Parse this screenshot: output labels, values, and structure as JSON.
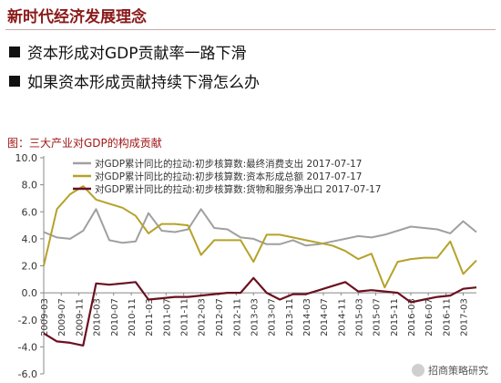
{
  "header": {
    "title": "新时代经济发展理念",
    "accent_color": "#8b1a1a"
  },
  "bullets": [
    {
      "text": "资本形成对GDP贡献率一路下滑"
    },
    {
      "text": "如果资本形成贡献持续下滑怎么办"
    }
  ],
  "chart_caption": "图：三大产业对GDP的构成贡献",
  "watermark": "招商策略研究",
  "chart_data": {
    "type": "line",
    "title": "",
    "xlabel": "",
    "ylabel": "",
    "ylim": [
      -6.0,
      10.0
    ],
    "yticks": [
      "10.0",
      "8.0",
      "6.0",
      "4.0",
      "2.0",
      "0.0",
      "-2.0",
      "-4.0",
      "-6.0"
    ],
    "x_ticks": [
      "2009-03",
      "2009-07",
      "2009-11",
      "2010-03",
      "2010-07",
      "2010-11",
      "2011-03",
      "2011-07",
      "2011-11",
      "2012-03",
      "2012-07",
      "2012-11",
      "2013-03",
      "2013-07",
      "2013-11",
      "2014-03",
      "2014-07",
      "2014-11",
      "2015-03",
      "2015-07",
      "2015-11",
      "2016-03",
      "2016-07",
      "2016-11",
      "2017-03"
    ],
    "x": [
      "2009-03",
      "2009-06",
      "2009-09",
      "2009-12",
      "2010-03",
      "2010-06",
      "2010-09",
      "2010-12",
      "2011-03",
      "2011-06",
      "2011-09",
      "2011-12",
      "2012-03",
      "2012-06",
      "2012-09",
      "2012-12",
      "2013-03",
      "2013-06",
      "2013-09",
      "2013-12",
      "2014-03",
      "2014-06",
      "2014-09",
      "2014-12",
      "2015-03",
      "2015-06",
      "2015-09",
      "2015-12",
      "2016-03",
      "2016-06",
      "2016-09",
      "2016-12",
      "2017-03",
      "2017-06"
    ],
    "legend_position": "top",
    "grid": false,
    "series": [
      {
        "name": "对GDP累计同比的拉动:初步核算数:最终消费支出 2017-07-17",
        "color": "#a0a0a0",
        "values": [
          4.5,
          4.1,
          4.0,
          4.6,
          6.2,
          3.9,
          3.7,
          3.8,
          5.9,
          4.6,
          4.5,
          4.7,
          6.2,
          4.8,
          4.7,
          4.1,
          4.0,
          3.6,
          3.6,
          3.9,
          3.5,
          3.6,
          3.8,
          4.0,
          4.2,
          4.1,
          4.3,
          4.6,
          4.9,
          4.8,
          4.7,
          4.4,
          5.3,
          4.5
        ]
      },
      {
        "name": "对GDP累计同比的拉动:初步核算数:资本形成总额 2017-07-17",
        "color": "#b5a22a",
        "values": [
          2.0,
          6.2,
          7.3,
          7.9,
          6.9,
          6.6,
          6.3,
          5.7,
          4.4,
          5.1,
          5.1,
          5.0,
          2.8,
          3.9,
          3.9,
          3.9,
          2.3,
          4.3,
          4.3,
          4.1,
          3.9,
          3.7,
          3.5,
          3.1,
          2.5,
          2.9,
          0.4,
          2.3,
          2.5,
          2.6,
          2.6,
          3.8,
          1.4,
          2.4
        ]
      },
      {
        "name": "对GDP累计同比的拉动:初步核算数:货物和服务净出口 2017-07-17",
        "color": "#6b1020",
        "values": [
          -3.0,
          -3.6,
          -3.7,
          -3.9,
          0.7,
          0.6,
          0.7,
          0.8,
          -0.5,
          -0.4,
          -0.3,
          -0.3,
          -0.2,
          -0.1,
          0.0,
          0.0,
          1.1,
          0.0,
          -0.5,
          -0.1,
          -0.1,
          0.2,
          0.5,
          0.8,
          0.1,
          0.2,
          0.1,
          0.0,
          -0.7,
          -0.5,
          -0.3,
          -0.2,
          0.3,
          0.4
        ]
      }
    ]
  }
}
